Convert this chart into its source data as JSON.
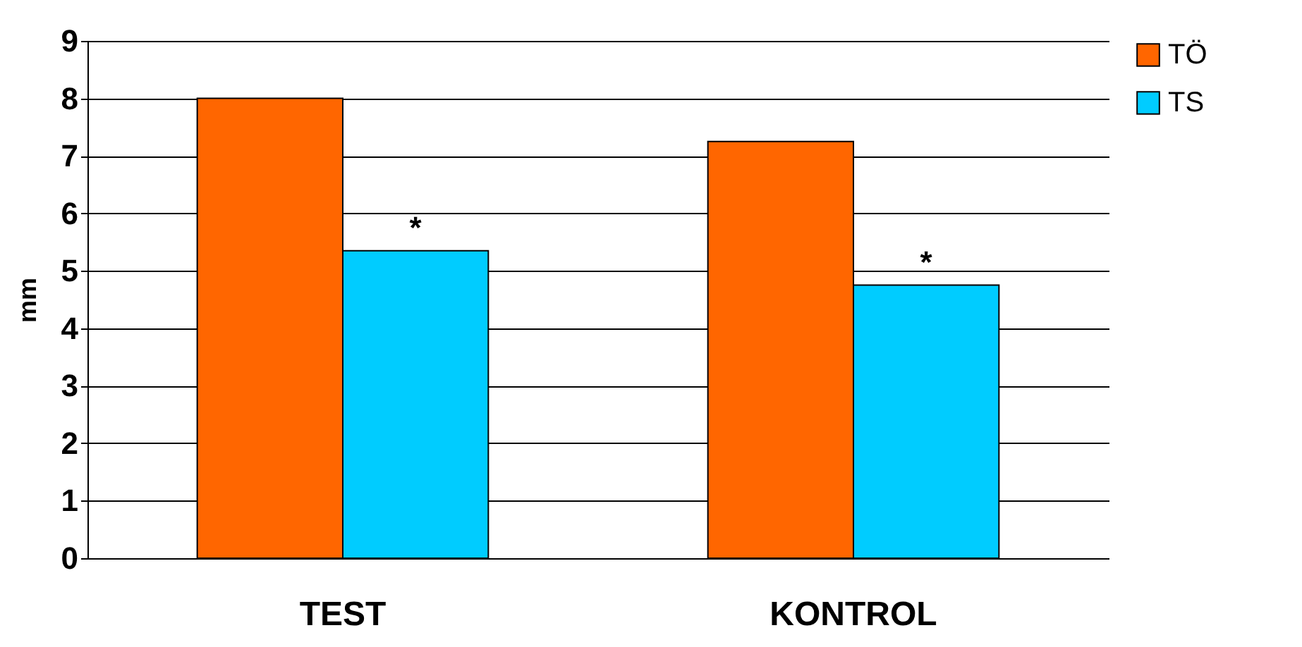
{
  "chart_data": {
    "type": "bar",
    "ylabel": "mm",
    "categories": [
      "TEST",
      "KONTROL"
    ],
    "series": [
      {
        "name": "TÖ",
        "color": "#ff6600",
        "values": [
          8.0,
          7.25
        ]
      },
      {
        "name": "TS",
        "color": "#00ccff",
        "values": [
          5.35,
          4.75
        ]
      }
    ],
    "ylim": [
      0,
      9
    ],
    "yticks": [
      0,
      1,
      2,
      3,
      4,
      5,
      6,
      7,
      8,
      9
    ],
    "grid": "y",
    "legend": "right",
    "annotations": [
      {
        "text": "*",
        "x": "TEST",
        "y": 5.35
      },
      {
        "text": "*",
        "x": "KONTROL",
        "y": 4.75
      }
    ]
  }
}
